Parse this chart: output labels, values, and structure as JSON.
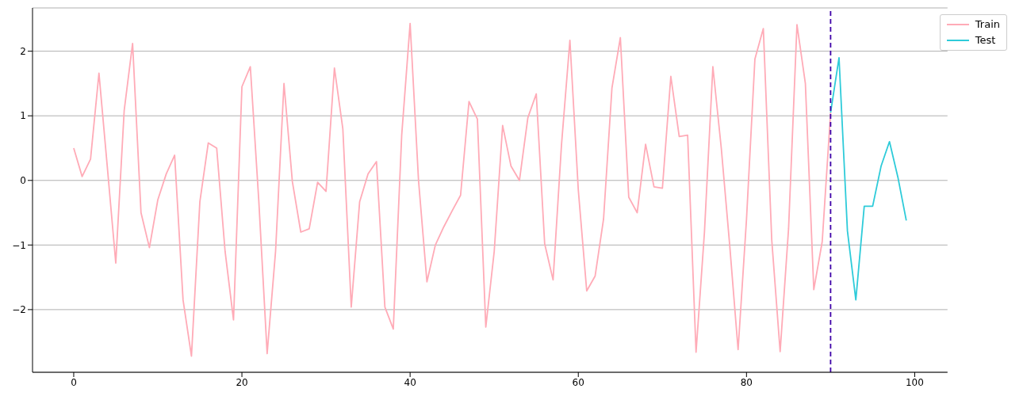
{
  "chart_data": {
    "type": "line",
    "series": [
      {
        "name": "Train",
        "color": "#ffabb7",
        "x": [
          0,
          1,
          2,
          3,
          4,
          5,
          6,
          7,
          8,
          9,
          10,
          11,
          12,
          13,
          14,
          15,
          16,
          17,
          18,
          19,
          20,
          21,
          22,
          23,
          24,
          25,
          26,
          27,
          28,
          29,
          30,
          31,
          32,
          33,
          34,
          35,
          36,
          37,
          38,
          39,
          40,
          41,
          42,
          43,
          44,
          45,
          46,
          47,
          48,
          49,
          50,
          51,
          52,
          53,
          54,
          55,
          56,
          57,
          58,
          59,
          60,
          61,
          62,
          63,
          64,
          65,
          66,
          67,
          68,
          69,
          70,
          71,
          72,
          73,
          74,
          75,
          76,
          77,
          78,
          79,
          80,
          81,
          82,
          83,
          84,
          85,
          86,
          87,
          88,
          89,
          90
        ],
        "values": [
          0.5,
          0.06,
          0.33,
          1.66,
          0.2,
          -1.28,
          1.08,
          2.12,
          -0.5,
          -1.04,
          -0.3,
          0.1,
          0.39,
          -1.85,
          -2.72,
          -0.33,
          0.58,
          0.5,
          -1.1,
          -2.16,
          1.45,
          1.76,
          -0.3,
          -2.68,
          -1.1,
          1.5,
          -0.02,
          -0.8,
          -0.75,
          -0.03,
          -0.17,
          1.74,
          0.8,
          -1.96,
          -0.33,
          0.1,
          0.29,
          -1.96,
          -2.3,
          0.7,
          2.43,
          0.0,
          -1.57,
          -1.0,
          -0.72,
          -0.47,
          -0.23,
          1.22,
          0.95,
          -2.27,
          -1.1,
          0.85,
          0.22,
          0.0,
          0.97,
          1.34,
          -0.98,
          -1.54,
          0.55,
          2.17,
          -0.15,
          -1.71,
          -1.48,
          -0.6,
          1.43,
          2.21,
          -0.26,
          -0.5,
          0.56,
          -0.1,
          -0.12,
          1.61,
          0.68,
          0.7,
          -2.66,
          -0.8,
          1.76,
          0.5,
          -1.0,
          -2.62,
          -0.6,
          1.88,
          2.35,
          -0.92,
          -2.65,
          -0.75,
          2.41,
          1.5,
          -1.69,
          -0.95,
          1.05
        ]
      },
      {
        "name": "Test",
        "color": "#2ecbd9",
        "x": [
          90,
          91,
          92,
          93,
          94,
          95,
          96,
          97,
          98,
          99
        ],
        "values": [
          1.05,
          1.9,
          -0.78,
          -1.85,
          -0.4,
          -0.4,
          0.22,
          0.6,
          0.05,
          -0.62
        ]
      }
    ],
    "xlim": [
      -4.9,
      103.9
    ],
    "xticks": [
      0,
      20,
      40,
      60,
      80,
      100
    ],
    "ylim": [
      -2.97,
      2.67
    ],
    "yticks": [
      -2,
      -1,
      0,
      1,
      2
    ],
    "grid": "y",
    "legend": "top right",
    "marker": "none",
    "line_style": "solid",
    "ref_lines": [
      {
        "axis": "x",
        "value": 90,
        "color": "#3f00a8",
        "line_style": "dashed"
      }
    ]
  }
}
